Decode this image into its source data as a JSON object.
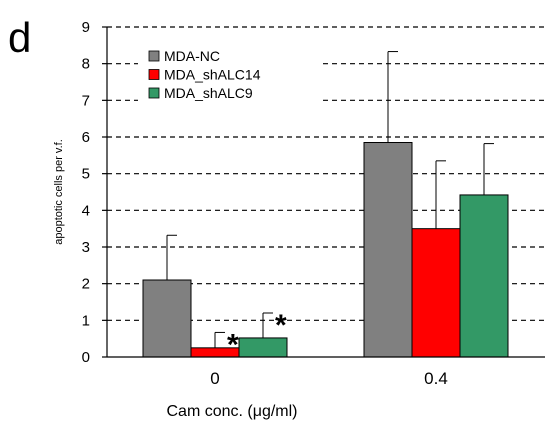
{
  "chart_data": {
    "type": "bar",
    "panel_label": "d",
    "categories": [
      "0",
      "0.4"
    ],
    "series": [
      {
        "name": "MDA-NC",
        "color": "#808080",
        "values": [
          2.1,
          5.85
        ],
        "errors": [
          1.22,
          2.48
        ]
      },
      {
        "name": "MDA_shALC14",
        "color": "#ff0000",
        "values": [
          0.25,
          3.5
        ],
        "errors": [
          0.42,
          1.85
        ]
      },
      {
        "name": "MDA_shALC9",
        "color": "#339966",
        "values": [
          0.52,
          4.42
        ],
        "errors": [
          0.68,
          1.4
        ]
      }
    ],
    "annotations": [
      {
        "category": "0",
        "series": "MDA_shALC14",
        "text": "*"
      },
      {
        "category": "0",
        "series": "MDA_shALC9",
        "text": "*"
      }
    ],
    "xlabel": "Cam conc. (μg/ml)",
    "ylabel": "apoptotic cells per v.f.",
    "ylim": [
      0,
      9
    ],
    "yticks": [
      "0",
      "1",
      "2",
      "3",
      "4",
      "5",
      "6",
      "7",
      "8",
      "9"
    ],
    "grid": "dashed horizontal",
    "legend_position": "top-left"
  }
}
